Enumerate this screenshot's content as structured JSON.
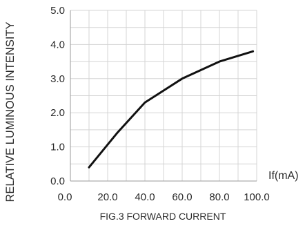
{
  "chart_data": {
    "type": "line",
    "title": "",
    "caption": "FIG.3 FORWARD CURRENT",
    "xlabel": "If(mA)",
    "ylabel": "RELATIVE LUMINOUS INTENSITY",
    "xlim": [
      0,
      100
    ],
    "ylim": [
      0,
      5
    ],
    "x_ticks": [
      0,
      20,
      40,
      60,
      80,
      100
    ],
    "x_tick_labels": [
      "0.0",
      "20.0",
      "40.0",
      "60.0",
      "80.0",
      "100.0"
    ],
    "y_ticks": [
      0,
      1,
      2,
      3,
      4,
      5
    ],
    "y_tick_labels": [
      "0.0",
      "1.0",
      "2.0",
      "3.0",
      "4.0",
      "5.0"
    ],
    "grid": true,
    "series": [
      {
        "name": "",
        "x": [
          10,
          25,
          40,
          60,
          80,
          98
        ],
        "y": [
          0.4,
          1.4,
          2.3,
          3.0,
          3.5,
          3.8
        ]
      }
    ],
    "colors": {
      "line": "#111111",
      "grid": "#d4d4d4",
      "text": "#2a2a2a"
    }
  }
}
